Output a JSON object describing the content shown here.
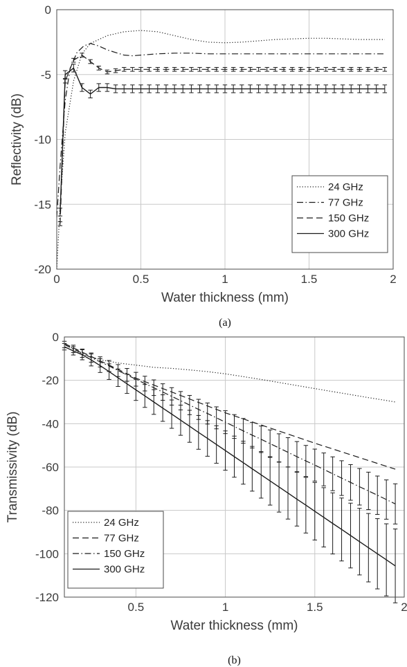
{
  "chart_data": [
    {
      "type": "line",
      "caption": "(a)",
      "xlabel": "Water thickness (mm)",
      "ylabel": "Reflectivity (dB)",
      "xlim": [
        0,
        2
      ],
      "ylim": [
        -20,
        0
      ],
      "xticks": [
        0,
        0.5,
        1,
        1.5,
        2
      ],
      "xtick_labels": [
        "0",
        "0.5",
        "1",
        "1.5",
        "2"
      ],
      "yticks": [
        0,
        -5,
        -10,
        -15,
        -20
      ],
      "ytick_labels": [
        "0",
        "-5",
        "-10",
        "-15",
        "-20"
      ],
      "grid": true,
      "legend_position": "lower-right",
      "series": [
        {
          "name": "24 GHz",
          "style": "dotted",
          "x": [
            0.0,
            0.02,
            0.05,
            0.1,
            0.15,
            0.2,
            0.3,
            0.4,
            0.5,
            0.6,
            0.7,
            0.8,
            0.9,
            1.0,
            1.1,
            1.2,
            1.3,
            1.4,
            1.5,
            1.6,
            1.7,
            1.8,
            1.9,
            1.95
          ],
          "y": [
            -20,
            -15,
            -9.5,
            -5.5,
            -3.4,
            -2.6,
            -2.0,
            -1.7,
            -1.6,
            -1.7,
            -2.0,
            -2.3,
            -2.5,
            -2.55,
            -2.5,
            -2.4,
            -2.3,
            -2.25,
            -2.2,
            -2.2,
            -2.25,
            -2.3,
            -2.3,
            -2.3
          ]
        },
        {
          "name": "77 GHz",
          "style": "dashdot",
          "x": [
            0.0,
            0.02,
            0.05,
            0.08,
            0.12,
            0.16,
            0.2,
            0.25,
            0.3,
            0.35,
            0.4,
            0.45,
            0.5,
            0.6,
            0.7,
            0.8,
            0.9,
            1.0,
            1.2,
            1.4,
            1.6,
            1.8,
            1.95
          ],
          "y": [
            -16,
            -12,
            -7,
            -4.5,
            -3.3,
            -2.8,
            -2.6,
            -2.8,
            -3.1,
            -3.3,
            -3.5,
            -3.55,
            -3.5,
            -3.4,
            -3.35,
            -3.35,
            -3.4,
            -3.4,
            -3.4,
            -3.4,
            -3.4,
            -3.4,
            -3.4
          ]
        },
        {
          "name": "150 GHz",
          "style": "dashed",
          "error_bars": 0.15,
          "x": [
            0.02,
            0.05,
            0.1,
            0.15,
            0.2,
            0.25,
            0.3,
            0.35,
            0.4,
            0.45,
            0.5,
            0.55,
            0.6,
            0.65,
            0.7,
            0.75,
            0.8,
            0.85,
            0.9,
            0.95,
            1.0,
            1.05,
            1.1,
            1.15,
            1.2,
            1.25,
            1.3,
            1.35,
            1.4,
            1.45,
            1.5,
            1.55,
            1.6,
            1.65,
            1.7,
            1.75,
            1.8,
            1.85,
            1.9,
            1.95
          ],
          "y": [
            -16.5,
            -5.5,
            -3.9,
            -3.5,
            -4.0,
            -4.5,
            -4.8,
            -4.7,
            -4.6,
            -4.6,
            -4.6,
            -4.6,
            -4.6,
            -4.6,
            -4.6,
            -4.6,
            -4.6,
            -4.6,
            -4.6,
            -4.6,
            -4.6,
            -4.6,
            -4.6,
            -4.6,
            -4.6,
            -4.6,
            -4.6,
            -4.6,
            -4.6,
            -4.6,
            -4.6,
            -4.6,
            -4.6,
            -4.6,
            -4.6,
            -4.6,
            -4.6,
            -4.6,
            -4.6,
            -4.6
          ]
        },
        {
          "name": "300 GHz",
          "style": "solid",
          "error_bars": 0.3,
          "x": [
            0.02,
            0.05,
            0.1,
            0.15,
            0.2,
            0.25,
            0.3,
            0.35,
            0.4,
            0.45,
            0.5,
            0.55,
            0.6,
            0.65,
            0.7,
            0.75,
            0.8,
            0.85,
            0.9,
            0.95,
            1.0,
            1.05,
            1.1,
            1.15,
            1.2,
            1.25,
            1.3,
            1.35,
            1.4,
            1.45,
            1.5,
            1.55,
            1.6,
            1.65,
            1.7,
            1.75,
            1.8,
            1.85,
            1.9,
            1.95
          ],
          "y": [
            -15.6,
            -5.0,
            -4.5,
            -6.0,
            -6.5,
            -6.0,
            -6.0,
            -6.1,
            -6.1,
            -6.1,
            -6.1,
            -6.1,
            -6.1,
            -6.1,
            -6.1,
            -6.1,
            -6.1,
            -6.1,
            -6.1,
            -6.1,
            -6.1,
            -6.1,
            -6.1,
            -6.1,
            -6.1,
            -6.1,
            -6.1,
            -6.1,
            -6.1,
            -6.1,
            -6.1,
            -6.1,
            -6.1,
            -6.1,
            -6.1,
            -6.1,
            -6.1,
            -6.1,
            -6.1,
            -6.1
          ]
        }
      ]
    },
    {
      "type": "line",
      "caption": "(b)",
      "xlabel": "Water thickness (mm)",
      "ylabel": "Transmissivity (dB)",
      "xlim": [
        0.1,
        2
      ],
      "ylim": [
        -120,
        0
      ],
      "xticks": [
        0.5,
        1,
        1.5,
        2
      ],
      "xtick_labels": [
        "0.5",
        "1",
        "1.5",
        "2"
      ],
      "yticks": [
        0,
        -20,
        -40,
        -60,
        -80,
        -100,
        -120
      ],
      "ytick_labels": [
        "0",
        "-20",
        "-40",
        "-60",
        "-80",
        "-100",
        "-120"
      ],
      "grid": true,
      "legend_position": "lower-left",
      "series": [
        {
          "name": "24 GHz",
          "style": "dotted",
          "x": [
            0.1,
            0.2,
            0.3,
            0.4,
            0.5,
            0.6,
            0.7,
            0.8,
            0.9,
            1.0,
            1.1,
            1.2,
            1.3,
            1.4,
            1.5,
            1.6,
            1.7,
            1.8,
            1.9,
            1.95
          ],
          "y": [
            -3,
            -8,
            -10.5,
            -12,
            -13,
            -14,
            -14.5,
            -15.2,
            -16,
            -17,
            -18.3,
            -19.6,
            -21,
            -22.4,
            -23.8,
            -25.2,
            -26.6,
            -28,
            -29.3,
            -30
          ]
        },
        {
          "name": "77 GHz",
          "style": "dashed",
          "x": [
            0.1,
            0.5,
            1.0,
            1.5,
            1.95
          ],
          "y": [
            -3,
            -19,
            -35,
            -49,
            -61
          ]
        },
        {
          "name": "150 GHz",
          "style": "dashdot",
          "error_bars": true,
          "x": [
            0.1,
            0.15,
            0.2,
            0.25,
            0.3,
            0.35,
            0.4,
            0.45,
            0.5,
            0.55,
            0.6,
            0.65,
            0.7,
            0.75,
            0.8,
            0.85,
            0.9,
            0.95,
            1.0,
            1.05,
            1.1,
            1.15,
            1.2,
            1.25,
            1.3,
            1.35,
            1.4,
            1.45,
            1.5,
            1.55,
            1.6,
            1.65,
            1.7,
            1.75,
            1.8,
            1.85,
            1.9,
            1.95
          ],
          "y": [
            -3.5,
            -5.5,
            -7.5,
            -9.5,
            -11.5,
            -13.4,
            -15.5,
            -17.5,
            -19.5,
            -21.5,
            -23.4,
            -25.4,
            -27.4,
            -29.4,
            -31.4,
            -33.4,
            -35.3,
            -37.3,
            -39.3,
            -41.3,
            -43.3,
            -45.3,
            -47.2,
            -49.2,
            -51.2,
            -53.2,
            -55.2,
            -57.2,
            -59.1,
            -61.1,
            -63.1,
            -65.1,
            -67.1,
            -69.1,
            -71,
            -73,
            -75,
            -77
          ]
        },
        {
          "name": "300 GHz",
          "style": "solid",
          "error_bars": true,
          "x": [
            0.1,
            0.15,
            0.2,
            0.25,
            0.3,
            0.35,
            0.4,
            0.45,
            0.5,
            0.55,
            0.6,
            0.65,
            0.7,
            0.75,
            0.8,
            0.85,
            0.9,
            0.95,
            1.0,
            1.05,
            1.1,
            1.15,
            1.2,
            1.25,
            1.3,
            1.35,
            1.4,
            1.45,
            1.5,
            1.55,
            1.6,
            1.65,
            1.7,
            1.75,
            1.8,
            1.85,
            1.9,
            1.95
          ],
          "y": [
            -4.5,
            -6.4,
            -8.2,
            -10.6,
            -13.2,
            -16,
            -18.8,
            -21.6,
            -24.4,
            -27.2,
            -30,
            -32.8,
            -35.6,
            -38.4,
            -41.2,
            -44,
            -46.8,
            -49.6,
            -52.4,
            -55.2,
            -58,
            -60.8,
            -63.6,
            -66.4,
            -69.2,
            -72,
            -74.8,
            -77.6,
            -80.4,
            -83.2,
            -86,
            -88.8,
            -91.6,
            -94.4,
            -97.2,
            -100,
            -102.8,
            -105.6
          ]
        }
      ]
    }
  ]
}
